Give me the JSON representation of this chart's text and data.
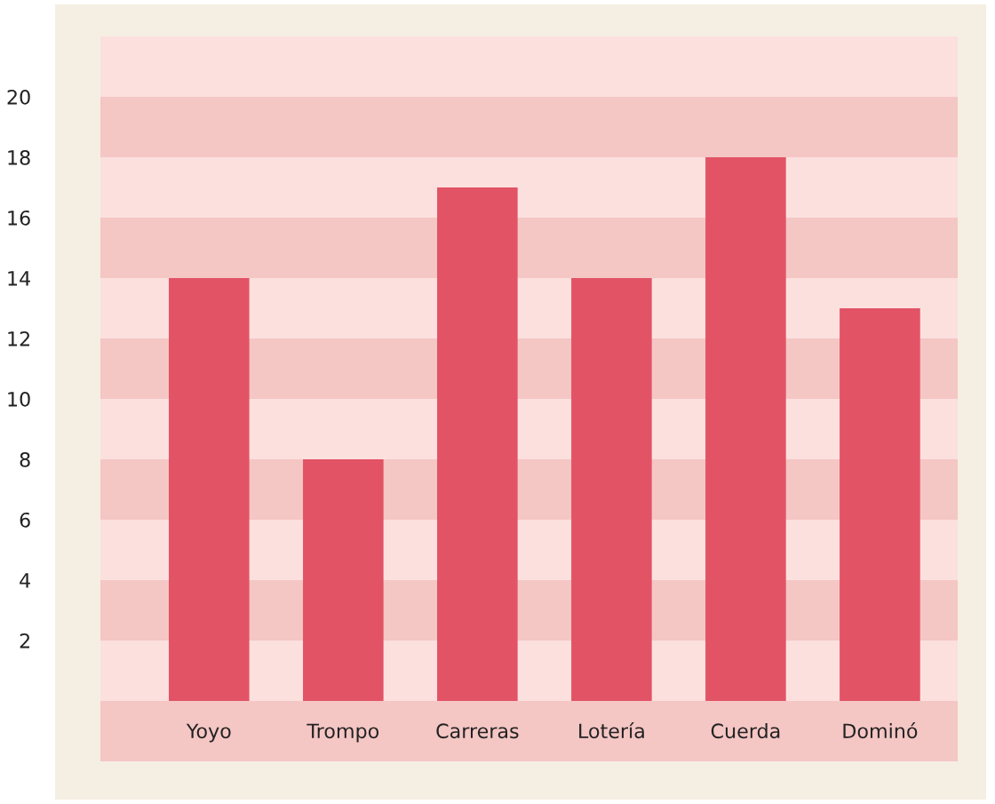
{
  "chart_data": {
    "type": "bar",
    "categories": [
      "Yoyo",
      "Trompo",
      "Carreras",
      "Lotería",
      "Cuerda",
      "Dominó"
    ],
    "values": [
      14,
      8,
      17,
      14,
      18,
      13
    ],
    "color": "#e25366",
    "ylim": [
      -2,
      22
    ],
    "yticks": [
      2,
      4,
      6,
      8,
      10,
      12,
      14,
      16,
      18,
      20
    ],
    "grid": false,
    "legend": false,
    "bands": [
      {
        "axis": "y",
        "from": -2,
        "to": 0,
        "color": "#f4c6c4"
      },
      {
        "axis": "y",
        "from": 2,
        "to": 4,
        "color": "#f4c6c4"
      },
      {
        "axis": "y",
        "from": 6,
        "to": 8,
        "color": "#f4c6c4"
      },
      {
        "axis": "y",
        "from": 10,
        "to": 12,
        "color": "#f4c6c4"
      },
      {
        "axis": "y",
        "from": 14,
        "to": 16,
        "color": "#f4c6c4"
      },
      {
        "axis": "y",
        "from": 18,
        "to": 20,
        "color": "#f4c6c4"
      }
    ]
  }
}
